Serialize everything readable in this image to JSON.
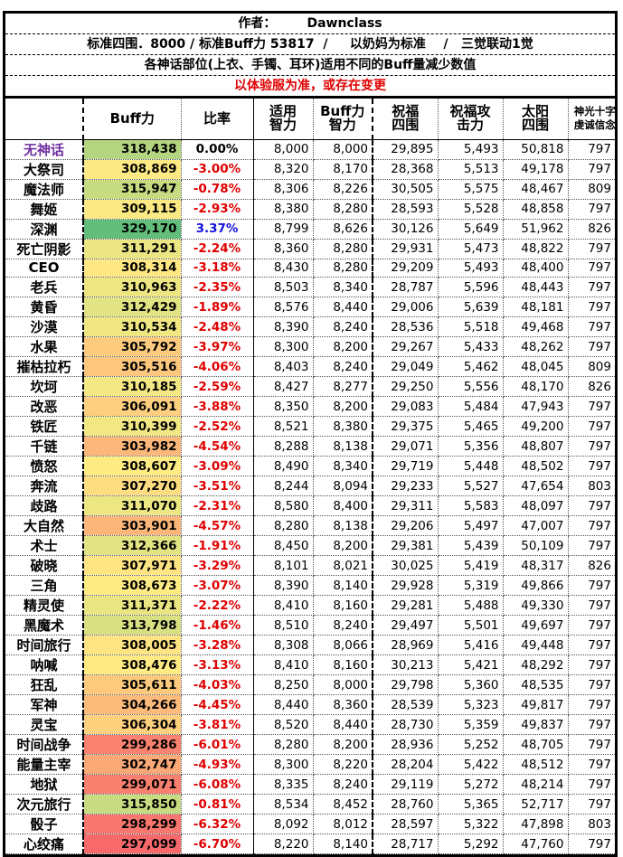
{
  "header": {
    "author": "作者：       Dawnclass",
    "standard": "标准四围．8000 / 标准Buff力 53817  /     以奶妈为标准    /   三觉联动1觉",
    "note": "各神话部位(上衣、手镯、耳环)适用不同的Buff量减少数值",
    "warning": "以体验服为准，或存在变更"
  },
  "columns": [
    "",
    "Buff力",
    "比率",
    "适用智力",
    "Buff力智力",
    "祝福四围",
    "祝福攻击力",
    "太阳四围",
    "神光十字虔诚信念"
  ],
  "colors": {
    "positive": "#1010e0",
    "negative": "#e00000",
    "zero": "#000000",
    "baseline_name": "#7030a0",
    "scale_low": "#f8696b",
    "scale_mid": "#ffeb84",
    "scale_high": "#63be7b"
  },
  "rows": [
    [
      "无神话",
      "318,438",
      "0.00%",
      "8,000",
      "8,000",
      "29,895",
      "5,493",
      "50,818",
      "797"
    ],
    [
      "大祭司",
      "308,869",
      "-3.00%",
      "8,320",
      "8,170",
      "28,368",
      "5,513",
      "49,178",
      "797"
    ],
    [
      "魔法师",
      "315,947",
      "-0.78%",
      "8,306",
      "8,226",
      "30,505",
      "5,575",
      "48,467",
      "809"
    ],
    [
      "舞姬",
      "309,115",
      "-2.93%",
      "8,380",
      "8,280",
      "28,593",
      "5,528",
      "48,858",
      "797"
    ],
    [
      "深渊",
      "329,170",
      "3.37%",
      "8,799",
      "8,626",
      "30,126",
      "5,649",
      "51,962",
      "826"
    ],
    [
      "死亡阴影",
      "311,291",
      "-2.24%",
      "8,360",
      "8,280",
      "29,931",
      "5,473",
      "48,822",
      "797"
    ],
    [
      "CEO",
      "308,314",
      "-3.18%",
      "8,430",
      "8,280",
      "29,209",
      "5,493",
      "48,400",
      "797"
    ],
    [
      "老兵",
      "310,963",
      "-2.35%",
      "8,503",
      "8,340",
      "28,787",
      "5,596",
      "48,443",
      "797"
    ],
    [
      "黄昏",
      "312,429",
      "-1.89%",
      "8,576",
      "8,440",
      "29,006",
      "5,639",
      "48,181",
      "797"
    ],
    [
      "沙漠",
      "310,534",
      "-2.48%",
      "8,390",
      "8,240",
      "28,536",
      "5,518",
      "49,468",
      "797"
    ],
    [
      "水果",
      "305,792",
      "-3.97%",
      "8,300",
      "8,200",
      "29,267",
      "5,433",
      "48,262",
      "797"
    ],
    [
      "摧枯拉朽",
      "305,516",
      "-4.06%",
      "8,403",
      "8,240",
      "29,049",
      "5,462",
      "48,045",
      "809"
    ],
    [
      "坎坷",
      "310,185",
      "-2.59%",
      "8,427",
      "8,277",
      "29,250",
      "5,556",
      "48,170",
      "826"
    ],
    [
      "改恶",
      "306,091",
      "-3.88%",
      "8,350",
      "8,200",
      "29,083",
      "5,484",
      "47,943",
      "797"
    ],
    [
      "铁匠",
      "310,399",
      "-2.52%",
      "8,521",
      "8,380",
      "29,375",
      "5,465",
      "49,200",
      "797"
    ],
    [
      "千链",
      "303,982",
      "-4.54%",
      "8,288",
      "8,138",
      "29,071",
      "5,356",
      "48,807",
      "797"
    ],
    [
      "愤怒",
      "308,607",
      "-3.09%",
      "8,490",
      "8,340",
      "29,719",
      "5,448",
      "48,502",
      "797"
    ],
    [
      "奔流",
      "307,270",
      "-3.51%",
      "8,244",
      "8,094",
      "29,233",
      "5,527",
      "47,654",
      "803"
    ],
    [
      "歧路",
      "311,070",
      "-2.31%",
      "8,580",
      "8,400",
      "29,311",
      "5,583",
      "48,097",
      "797"
    ],
    [
      "大自然",
      "303,901",
      "-4.57%",
      "8,280",
      "8,138",
      "29,206",
      "5,497",
      "47,007",
      "797"
    ],
    [
      "术士",
      "312,366",
      "-1.91%",
      "8,450",
      "8,200",
      "29,381",
      "5,439",
      "50,109",
      "797"
    ],
    [
      "破晓",
      "307,971",
      "-3.29%",
      "8,101",
      "8,021",
      "30,025",
      "5,419",
      "48,317",
      "826"
    ],
    [
      "三角",
      "308,673",
      "-3.07%",
      "8,390",
      "8,140",
      "29,928",
      "5,319",
      "49,866",
      "797"
    ],
    [
      "精灵使",
      "311,371",
      "-2.22%",
      "8,410",
      "8,160",
      "29,281",
      "5,488",
      "49,330",
      "797"
    ],
    [
      "黑魔术",
      "313,798",
      "-1.46%",
      "8,510",
      "8,240",
      "29,497",
      "5,501",
      "49,697",
      "797"
    ],
    [
      "时间旅行",
      "308,005",
      "-3.28%",
      "8,308",
      "8,066",
      "28,969",
      "5,416",
      "49,448",
      "797"
    ],
    [
      "呐喊",
      "308,476",
      "-3.13%",
      "8,410",
      "8,160",
      "30,213",
      "5,421",
      "48,292",
      "797"
    ],
    [
      "狂乱",
      "305,611",
      "-4.03%",
      "8,250",
      "8,000",
      "29,798",
      "5,360",
      "48,535",
      "797"
    ],
    [
      "军神",
      "304,266",
      "-4.45%",
      "8,440",
      "8,360",
      "28,539",
      "5,323",
      "49,817",
      "797"
    ],
    [
      "灵宝",
      "306,304",
      "-3.81%",
      "8,520",
      "8,440",
      "28,730",
      "5,359",
      "49,837",
      "797"
    ],
    [
      "时间战争",
      "299,286",
      "-6.01%",
      "8,280",
      "8,200",
      "28,936",
      "5,252",
      "48,705",
      "797"
    ],
    [
      "能量主宰",
      "302,747",
      "-4.93%",
      "8,300",
      "8,220",
      "28,204",
      "5,422",
      "48,512",
      "797"
    ],
    [
      "地狱",
      "299,071",
      "-6.08%",
      "8,335",
      "8,240",
      "29,119",
      "5,272",
      "48,214",
      "797"
    ],
    [
      "次元旅行",
      "315,850",
      "-0.81%",
      "8,534",
      "8,452",
      "28,760",
      "5,365",
      "52,717",
      "797"
    ],
    [
      "骰子",
      "298,299",
      "-6.32%",
      "8,092",
      "8,012",
      "28,597",
      "5,322",
      "47,898",
      "803"
    ],
    [
      "心绞痛",
      "297,099",
      "-6.70%",
      "8,220",
      "8,140",
      "28,717",
      "5,292",
      "47,760",
      "797"
    ]
  ]
}
